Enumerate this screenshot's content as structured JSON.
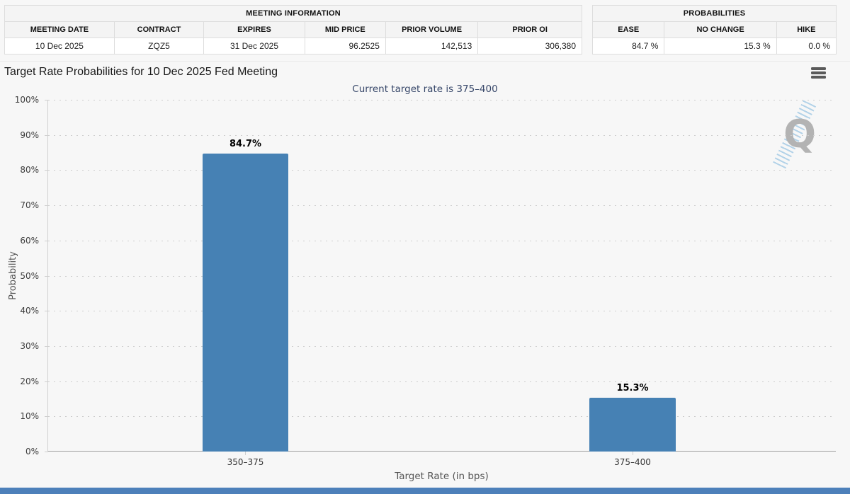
{
  "meeting_info": {
    "title": "MEETING INFORMATION",
    "columns": [
      "MEETING DATE",
      "CONTRACT",
      "EXPIRES",
      "MID PRICE",
      "PRIOR VOLUME",
      "PRIOR OI"
    ],
    "row": [
      "10 Dec 2025",
      "ZQZ5",
      "31 Dec 2025",
      "96.2525",
      "142,513",
      "306,380"
    ]
  },
  "probabilities_panel": {
    "title": "PROBABILITIES",
    "columns": [
      "EASE",
      "NO CHANGE",
      "HIKE"
    ],
    "row": [
      "84.7 %",
      "15.3 %",
      "0.0 %"
    ]
  },
  "chart_data": {
    "type": "bar",
    "title": "Target Rate Probabilities for 10 Dec 2025 Fed Meeting",
    "subtitle": "Current target rate is 375–400",
    "categories": [
      "350–375",
      "375–400"
    ],
    "values": [
      84.7,
      15.3
    ],
    "bar_labels": [
      "84.7%",
      "15.3%"
    ],
    "xlabel": "Target Rate (in bps)",
    "ylabel": "Probability",
    "ylim": [
      0,
      100
    ],
    "yticks": [
      "100%",
      "90%",
      "80%",
      "70%",
      "60%",
      "50%",
      "40%",
      "30%",
      "20%",
      "10%",
      "0%"
    ],
    "grid": "dotted-horizontal",
    "legend": "none",
    "bar_color": "#4681b4",
    "watermark_letter": "Q"
  },
  "footer": {
    "accent_color": "#4d80ba"
  }
}
